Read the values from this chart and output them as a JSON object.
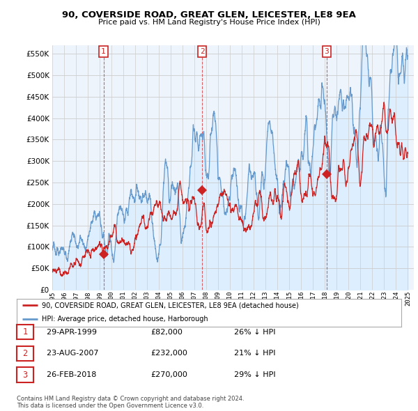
{
  "title": "90, COVERSIDE ROAD, GREAT GLEN, LEICESTER, LE8 9EA",
  "subtitle": "Price paid vs. HM Land Registry's House Price Index (HPI)",
  "ylim": [
    0,
    570000
  ],
  "yticks": [
    0,
    50000,
    100000,
    150000,
    200000,
    250000,
    300000,
    350000,
    400000,
    450000,
    500000,
    550000
  ],
  "ytick_labels": [
    "£0",
    "£50K",
    "£100K",
    "£150K",
    "£200K",
    "£250K",
    "£300K",
    "£350K",
    "£400K",
    "£450K",
    "£500K",
    "£550K"
  ],
  "hpi_color": "#6699cc",
  "hpi_fill": "#ddeeff",
  "price_color": "#cc2222",
  "transactions": [
    {
      "num": 1,
      "date": "29-APR-1999",
      "price": 82000,
      "pct": "26%",
      "x_year": 1999.32
    },
    {
      "num": 2,
      "date": "23-AUG-2007",
      "price": 232000,
      "pct": "21%",
      "x_year": 2007.64
    },
    {
      "num": 3,
      "date": "26-FEB-2018",
      "price": 270000,
      "pct": "29%",
      "x_year": 2018.15
    }
  ],
  "legend_line1": "90, COVERSIDE ROAD, GREAT GLEN, LEICESTER, LE8 9EA (detached house)",
  "legend_line2": "HPI: Average price, detached house, Harborough",
  "footnote": "Contains HM Land Registry data © Crown copyright and database right 2024.\nThis data is licensed under the Open Government Licence v3.0.",
  "background_color": "#ffffff",
  "chart_bg": "#eef4fb",
  "grid_color": "#cccccc",
  "xmin": 1995,
  "xmax": 2025
}
